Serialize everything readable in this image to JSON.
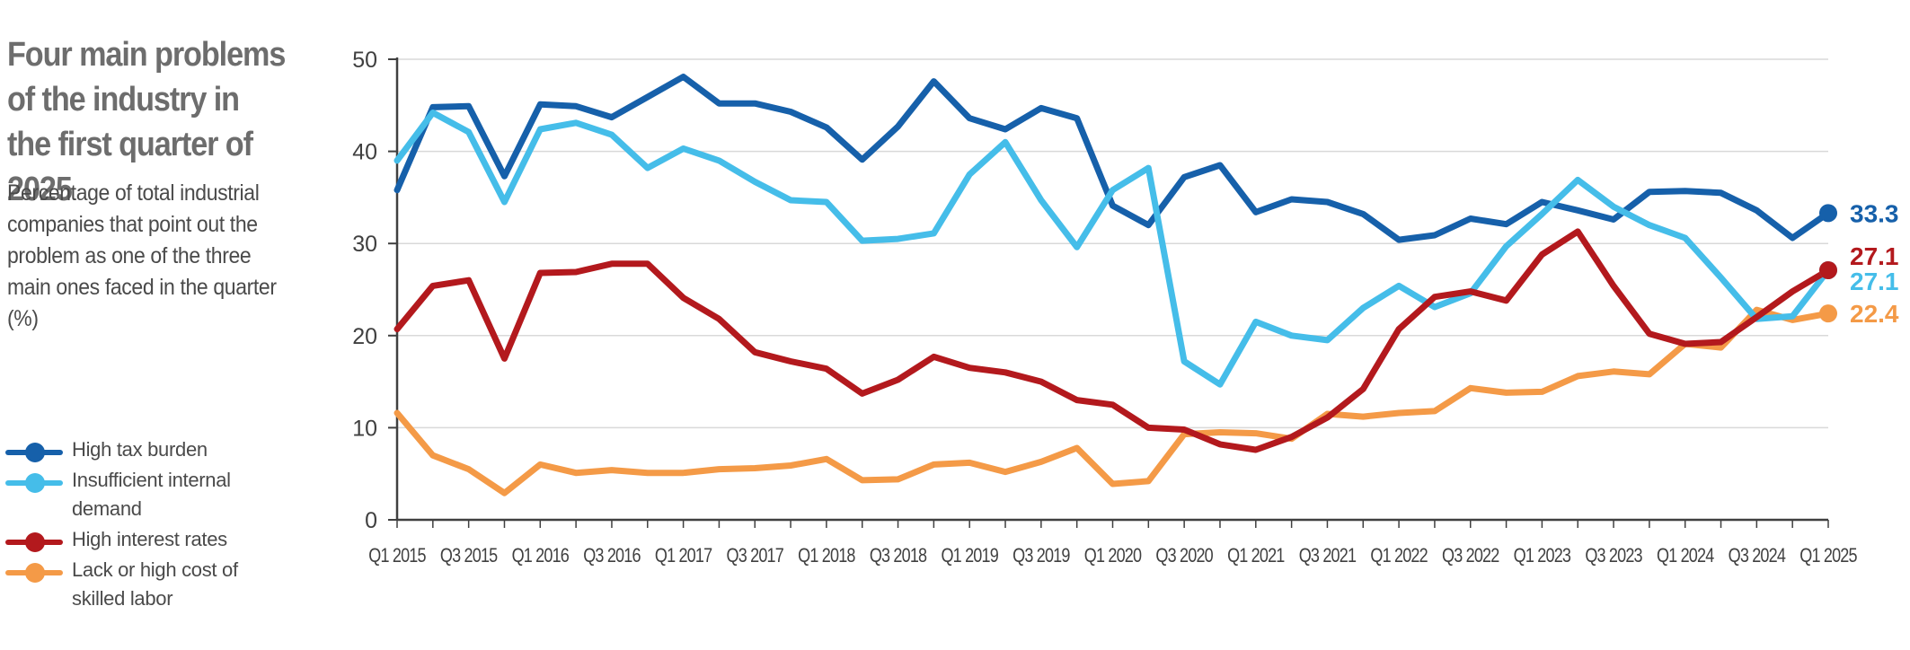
{
  "header": {
    "title": "Four main problems of the industry in the first quarter of 2025",
    "subtitle": "Percentage of total industrial companies that point out the problem as one of the three main ones faced in the quarter (%)"
  },
  "colors": {
    "high_tax": "#1660aa",
    "insufficient_demand": "#45bde9",
    "interest_rates": "#b3191d",
    "skilled_labor": "#f49a47",
    "grid": "#d9d9d9",
    "axis": "#404040"
  },
  "legend": [
    {
      "label": "High tax burden",
      "color": "#1660aa"
    },
    {
      "label": "Insufficient internal demand",
      "color": "#45bde9"
    },
    {
      "label": "High interest rates",
      "color": "#b3191d"
    },
    {
      "label": "Lack or high cost of skilled labor",
      "color": "#f49a47"
    }
  ],
  "chart_data": {
    "type": "line",
    "title": "Four main problems of the industry in the first quarter of 2025",
    "ylim": [
      0,
      50
    ],
    "yticks": [
      0,
      10,
      20,
      30,
      40,
      50
    ],
    "grid": "horizontal",
    "x": [
      "Q1 2015",
      "Q2 2015",
      "Q3 2015",
      "Q4 2015",
      "Q1 2016",
      "Q2 2016",
      "Q3 2016",
      "Q4 2016",
      "Q1 2017",
      "Q2 2017",
      "Q3 2017",
      "Q4 2017",
      "Q1 2018",
      "Q2 2018",
      "Q3 2018",
      "Q4 2018",
      "Q1 2019",
      "Q2 2019",
      "Q3 2019",
      "Q4 2019",
      "Q1 2020",
      "Q2 2020",
      "Q3 2020",
      "Q4 2020",
      "Q1 2021",
      "Q2 2021",
      "Q3 2021",
      "Q4 2021",
      "Q1 2022",
      "Q2 2022",
      "Q3 2022",
      "Q4 2022",
      "Q1 2023",
      "Q2 2023",
      "Q3 2023",
      "Q4 2023",
      "Q1 2024",
      "Q2 2024",
      "Q3 2024",
      "Q4 2024",
      "Q1 2025"
    ],
    "x_tick_labels": [
      "Q1 2015",
      "Q3 2015",
      "Q1 2016",
      "Q3 2016",
      "Q1 2017",
      "Q3 2017",
      "Q1 2018",
      "Q3 2018",
      "Q1 2019",
      "Q3 2019",
      "Q1 2020",
      "Q3 2020",
      "Q1 2021",
      "Q3 2021",
      "Q1 2022",
      "Q3 2022",
      "Q1 2023",
      "Q3 2023",
      "Q1 2024",
      "Q3 2024",
      "Q1 2025"
    ],
    "series": [
      {
        "name": "High tax burden",
        "color": "#1660aa",
        "end_label": "33.3",
        "values": [
          35.8,
          44.8,
          44.9,
          37.3,
          45.1,
          44.9,
          43.7,
          45.9,
          48.1,
          45.2,
          45.2,
          44.3,
          42.6,
          39.1,
          42.7,
          47.6,
          43.6,
          42.4,
          44.7,
          43.6,
          34.1,
          32.0,
          37.2,
          38.5,
          33.4,
          34.8,
          34.5,
          33.2,
          30.4,
          30.9,
          32.7,
          32.1,
          34.5,
          33.6,
          32.6,
          35.6,
          35.7,
          35.5,
          33.6,
          30.6,
          33.3
        ]
      },
      {
        "name": "Insufficient internal demand",
        "color": "#45bde9",
        "end_label": "27.1",
        "values": [
          39.0,
          44.2,
          42.1,
          34.5,
          42.4,
          43.1,
          41.8,
          38.2,
          40.3,
          39.0,
          36.7,
          34.7,
          34.5,
          30.3,
          30.5,
          31.1,
          37.5,
          41.0,
          34.7,
          29.6,
          35.8,
          38.2,
          17.2,
          14.7,
          21.5,
          20.0,
          19.5,
          23.0,
          25.4,
          23.1,
          24.6,
          29.7,
          33.2,
          36.9,
          34.0,
          32.0,
          30.6,
          26.3,
          21.8,
          22.1,
          27.1
        ]
      },
      {
        "name": "High interest rates",
        "color": "#b3191d",
        "end_label": "27.1",
        "values": [
          20.7,
          25.4,
          26.0,
          17.5,
          26.8,
          26.9,
          27.8,
          27.8,
          24.1,
          21.8,
          18.2,
          17.2,
          16.4,
          13.7,
          15.2,
          17.7,
          16.5,
          16.0,
          15.0,
          13.0,
          12.5,
          10.0,
          9.8,
          8.2,
          7.6,
          9.0,
          11.1,
          14.2,
          20.7,
          24.2,
          24.8,
          23.8,
          28.8,
          31.3,
          25.4,
          20.2,
          19.1,
          19.3,
          22.0,
          24.8,
          27.1
        ]
      },
      {
        "name": "Lack or high cost of skilled labor",
        "color": "#f49a47",
        "end_label": "22.4",
        "values": [
          11.6,
          7.0,
          5.5,
          2.9,
          6.0,
          5.1,
          5.4,
          5.1,
          5.1,
          5.5,
          5.6,
          5.9,
          6.6,
          4.3,
          4.4,
          6.0,
          6.2,
          5.2,
          6.3,
          7.8,
          3.9,
          4.2,
          9.3,
          9.5,
          9.4,
          8.8,
          11.5,
          11.2,
          11.6,
          11.8,
          14.3,
          13.8,
          13.9,
          15.6,
          16.1,
          15.8,
          19.1,
          18.7,
          22.8,
          21.7,
          22.4
        ]
      }
    ]
  }
}
